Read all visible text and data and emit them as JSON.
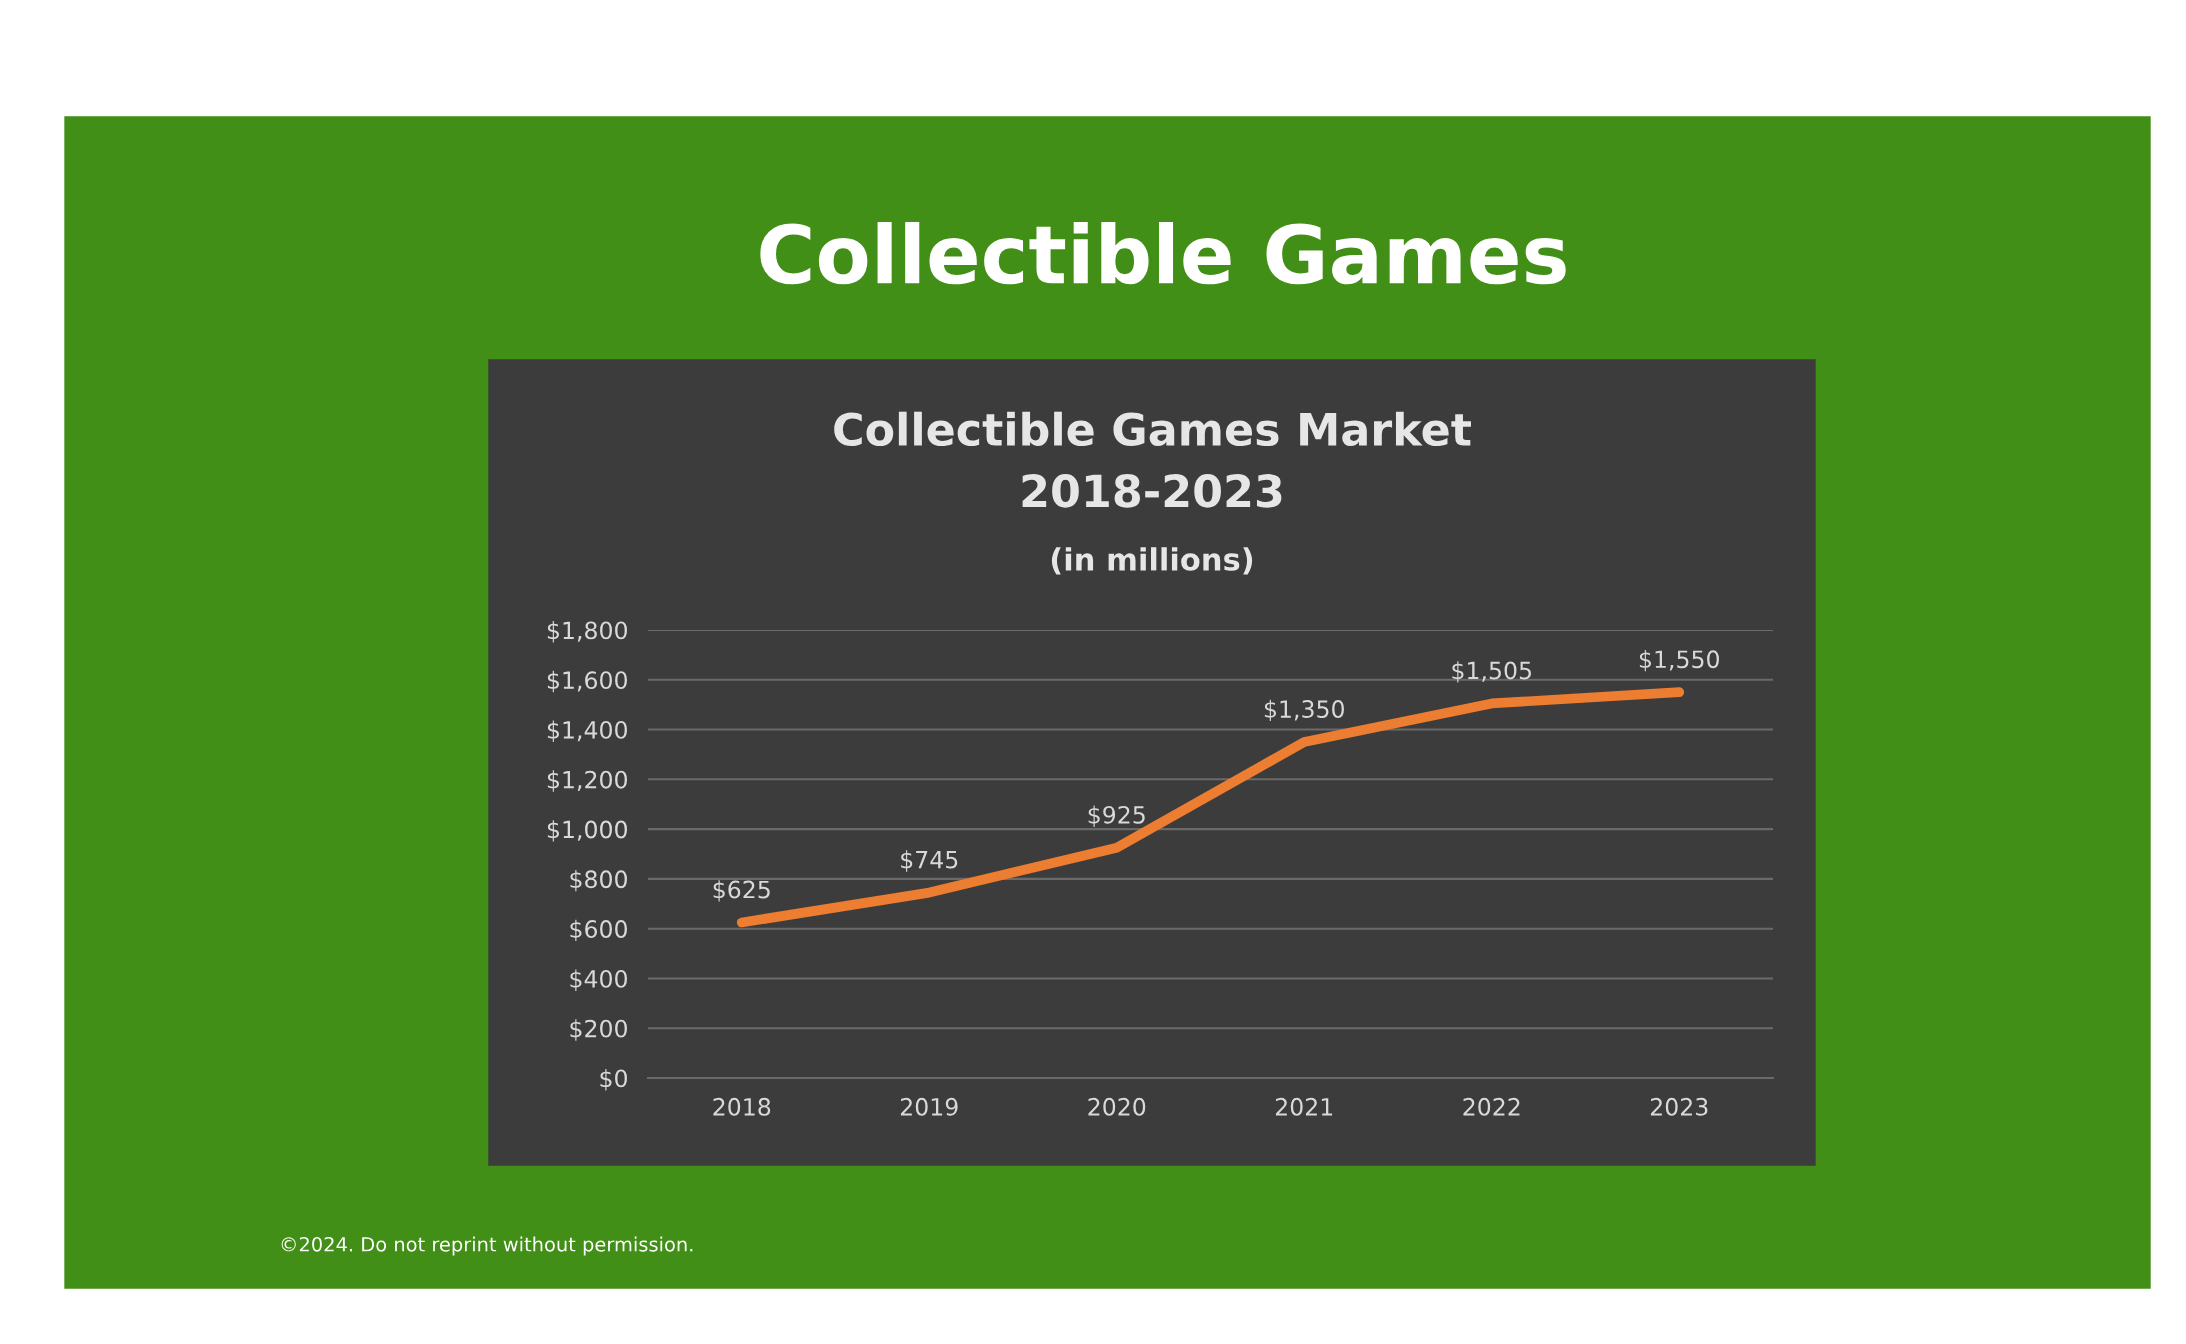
{
  "chart_data": {
    "type": "line",
    "title": "Collectible Games",
    "subtitle": "Collectible Games Market\n2018-2023",
    "categories": [
      "2018",
      "2019",
      "2020",
      "2021",
      "2022",
      "2023"
    ],
    "series": [
      {
        "color": "#ed7d31",
        "values": [
          625,
          745,
          925,
          1350,
          1505,
          1550
        ],
        "value_labels": [
          "$625",
          "$745",
          "$925",
          "$1,350",
          "$1,505",
          "$1,550"
        ]
      }
    ],
    "ylim": [
      0,
      1800
    ],
    "yticks": [
      {
        "value": 0,
        "label": "$0"
      },
      {
        "value": 200,
        "label": "$200"
      },
      {
        "value": 400,
        "label": "$400"
      },
      {
        "value": 600,
        "label": "$600"
      },
      {
        "value": 800,
        "label": "$800"
      },
      {
        "value": 1000,
        "label": "$1,000"
      },
      {
        "value": 1200,
        "label": "$1,200"
      },
      {
        "value": 1400,
        "label": "$1,400"
      },
      {
        "value": 1600,
        "label": "$1,600"
      },
      {
        "value": 1800,
        "label": "$1,800"
      }
    ],
    "grid": "y",
    "marker": "none",
    "line_style": "solid",
    "annotations": [
      "(in millions)",
      "©2024. Do not reprint without permission."
    ]
  }
}
